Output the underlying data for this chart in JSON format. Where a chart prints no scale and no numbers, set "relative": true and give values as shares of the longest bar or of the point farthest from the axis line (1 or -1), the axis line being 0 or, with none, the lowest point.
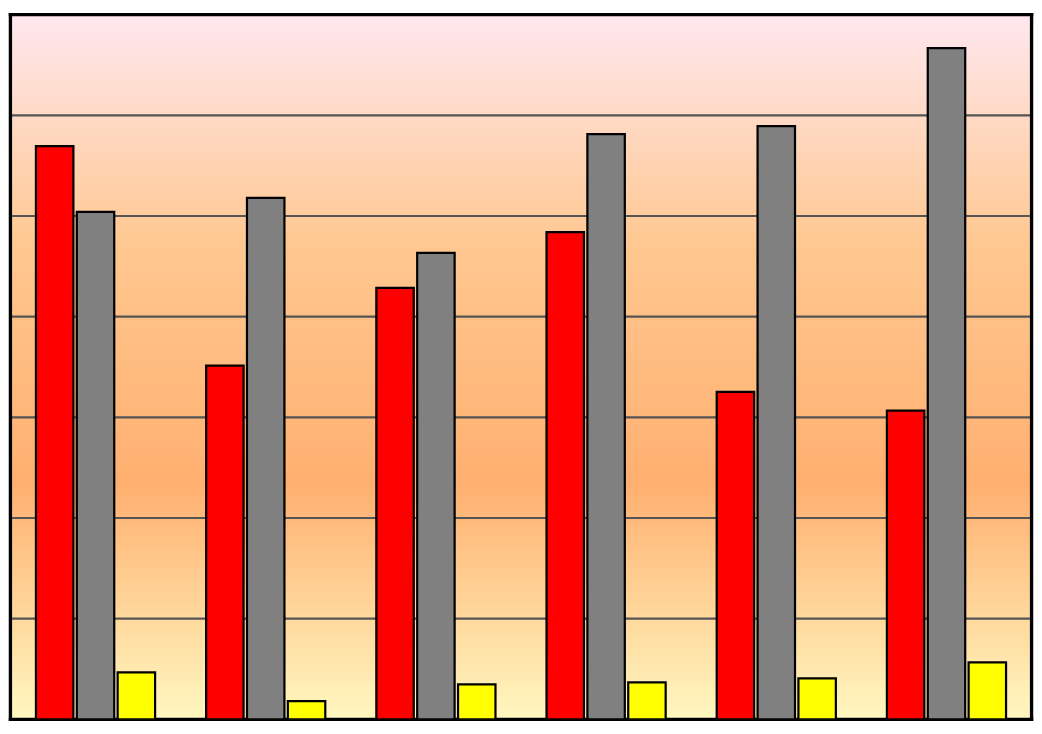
{
  "chart_data": {
    "type": "bar",
    "relative": true,
    "grid": "y",
    "categories": [
      null,
      null,
      null,
      null,
      null,
      null
    ],
    "series": [
      {
        "color": "#ff0000",
        "values": [
          0.854,
          0.527,
          0.643,
          0.726,
          0.488,
          0.46
        ]
      },
      {
        "color": "#808080",
        "values": [
          0.756,
          0.777,
          0.695,
          0.872,
          0.884,
          1
        ]
      },
      {
        "color": "#ffff00",
        "values": [
          0.07,
          0.027,
          0.052,
          0.055,
          0.061,
          0.085
        ]
      }
    ]
  }
}
